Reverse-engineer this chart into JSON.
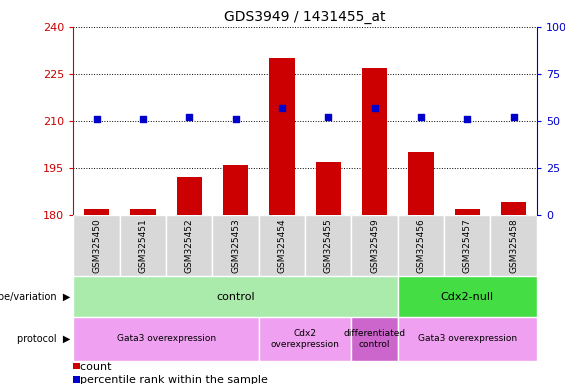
{
  "title": "GDS3949 / 1431455_at",
  "samples": [
    "GSM325450",
    "GSM325451",
    "GSM325452",
    "GSM325453",
    "GSM325454",
    "GSM325455",
    "GSM325459",
    "GSM325456",
    "GSM325457",
    "GSM325458"
  ],
  "count_values": [
    182,
    182,
    192,
    196,
    230,
    197,
    227,
    200,
    182,
    184
  ],
  "percentile_values": [
    51,
    51,
    52,
    51,
    57,
    52,
    57,
    52,
    51,
    52
  ],
  "ylim_left": [
    180,
    240
  ],
  "ylim_right": [
    0,
    100
  ],
  "yticks_left": [
    180,
    195,
    210,
    225,
    240
  ],
  "yticks_right": [
    0,
    25,
    50,
    75,
    100
  ],
  "bar_color": "#cc0000",
  "dot_color": "#0000cc",
  "bar_bottom": 180,
  "genotype_groups": [
    {
      "label": "control",
      "start": 0,
      "end": 7,
      "color": "#aaeaaa"
    },
    {
      "label": "Cdx2-null",
      "start": 7,
      "end": 10,
      "color": "#44dd44"
    }
  ],
  "protocol_groups": [
    {
      "label": "Gata3 overexpression",
      "start": 0,
      "end": 4,
      "color": "#f0a0f0"
    },
    {
      "label": "Cdx2\noverexpression",
      "start": 4,
      "end": 6,
      "color": "#f0a0f0"
    },
    {
      "label": "differentiated\ncontrol",
      "start": 6,
      "end": 7,
      "color": "#cc66cc"
    },
    {
      "label": "Gata3 overexpression",
      "start": 7,
      "end": 10,
      "color": "#f0a0f0"
    }
  ],
  "left_axis_color": "#cc0000",
  "right_axis_color": "#0000cc",
  "legend_count_color": "#cc0000",
  "legend_dot_color": "#0000cc",
  "sample_cell_color": "#d8d8d8",
  "sample_cell_border": "#ffffff"
}
